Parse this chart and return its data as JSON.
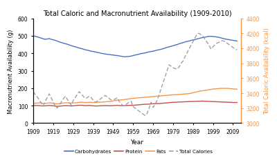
{
  "title": "Total Caloric and Macronutrient Availability (1909-2010)",
  "xlabel": "Year",
  "ylabel_left": "Macronutrient Availability (g)",
  "ylabel_right": "Total Caloric Availability (kcal)",
  "xlim": [
    1909,
    2013
  ],
  "ylim_left": [
    0,
    600
  ],
  "ylim_right": [
    3000,
    4400
  ],
  "yticks_left": [
    0,
    100,
    200,
    300,
    400,
    500,
    600
  ],
  "yticks_right": [
    3000,
    3200,
    3400,
    3600,
    3800,
    4000,
    4200,
    4400
  ],
  "xticks": [
    1909,
    1919,
    1929,
    1939,
    1949,
    1959,
    1969,
    1979,
    1989,
    1999,
    2009
  ],
  "colors": {
    "carbs": "#4472C4",
    "protein": "#C0504D",
    "fats": "#F79646",
    "calories": "#A0A0A0"
  },
  "legend_labels": [
    "Carbohydrates",
    "Protein",
    "Fats",
    "Total Calories"
  ],
  "years_start": 1909,
  "carbs": [
    500,
    497,
    494,
    490,
    487,
    483,
    480,
    482,
    484,
    480,
    477,
    474,
    470,
    465,
    462,
    458,
    455,
    452,
    448,
    444,
    440,
    437,
    434,
    430,
    427,
    424,
    420,
    418,
    415,
    412,
    410,
    408,
    405,
    403,
    400,
    398,
    396,
    394,
    393,
    391,
    390,
    388,
    387,
    385,
    383,
    381,
    380,
    381,
    382,
    384,
    387,
    390,
    392,
    395,
    398,
    400,
    402,
    405,
    408,
    410,
    412,
    415,
    418,
    420,
    423,
    426,
    430,
    434,
    437,
    440,
    443,
    447,
    450,
    454,
    458,
    461,
    465,
    468,
    470,
    474,
    476,
    479,
    482,
    485,
    488,
    490,
    492,
    495,
    497,
    497,
    496,
    495,
    493,
    491,
    488,
    485,
    482,
    480,
    478,
    476,
    474,
    472,
    470
  ],
  "protein": [
    101,
    100,
    101,
    100,
    99,
    98,
    99,
    100,
    101,
    100,
    99,
    97,
    96,
    97,
    98,
    99,
    100,
    100,
    99,
    98,
    99,
    100,
    101,
    102,
    102,
    101,
    100,
    100,
    101,
    100,
    99,
    98,
    98,
    99,
    99,
    100,
    100,
    100,
    99,
    100,
    100,
    101,
    102,
    101,
    100,
    99,
    100,
    101,
    101,
    102,
    102,
    103,
    104,
    105,
    106,
    107,
    108,
    108,
    109,
    110,
    111,
    111,
    112,
    112,
    113,
    114,
    115,
    116,
    117,
    118,
    119,
    119,
    120,
    121,
    121,
    122,
    122,
    123,
    123,
    124,
    124,
    124,
    125,
    125,
    126,
    126,
    125,
    125,
    124,
    124,
    123,
    123,
    122,
    122,
    121,
    121,
    120,
    120,
    119,
    119,
    118,
    118,
    118
  ],
  "fats": [
    114,
    114,
    115,
    116,
    114,
    113,
    113,
    114,
    116,
    115,
    113,
    111,
    110,
    111,
    113,
    115,
    116,
    116,
    115,
    114,
    115,
    116,
    117,
    119,
    120,
    119,
    118,
    118,
    119,
    119,
    118,
    118,
    119,
    120,
    120,
    121,
    122,
    123,
    124,
    125,
    127,
    129,
    131,
    132,
    133,
    134,
    136,
    137,
    139,
    141,
    142,
    143,
    144,
    145,
    146,
    147,
    148,
    149,
    150,
    151,
    152,
    153,
    154,
    155,
    156,
    157,
    158,
    159,
    160,
    161,
    162,
    163,
    163,
    164,
    165,
    166,
    167,
    168,
    169,
    171,
    174,
    177,
    179,
    182,
    184,
    186,
    187,
    189,
    191,
    193,
    195,
    196,
    197,
    198,
    199,
    199,
    199,
    199,
    198,
    197,
    196,
    195,
    194
  ],
  "calories": [
    3420,
    3380,
    3350,
    3310,
    3270,
    3230,
    3290,
    3340,
    3390,
    3340,
    3280,
    3230,
    3200,
    3240,
    3280,
    3320,
    3360,
    3320,
    3280,
    3240,
    3300,
    3340,
    3380,
    3420,
    3390,
    3360,
    3330,
    3340,
    3360,
    3340,
    3310,
    3280,
    3290,
    3310,
    3330,
    3350,
    3370,
    3350,
    3330,
    3310,
    3310,
    3320,
    3340,
    3290,
    3260,
    3230,
    3240,
    3260,
    3280,
    3290,
    3220,
    3200,
    3180,
    3160,
    3140,
    3120,
    3100,
    3130,
    3200,
    3280,
    3210,
    3250,
    3300,
    3380,
    3460,
    3540,
    3620,
    3700,
    3780,
    3760,
    3740,
    3730,
    3720,
    3750,
    3800,
    3830,
    3890,
    3940,
    3990,
    4040,
    4090,
    4140,
    4190,
    4200,
    4180,
    4160,
    4120,
    4080,
    4040,
    3990,
    4020,
    4050,
    4070,
    4080,
    4100,
    4100,
    4090,
    4070,
    4050,
    4030,
    4010,
    3990,
    3980
  ],
  "background_color": "#ffffff"
}
